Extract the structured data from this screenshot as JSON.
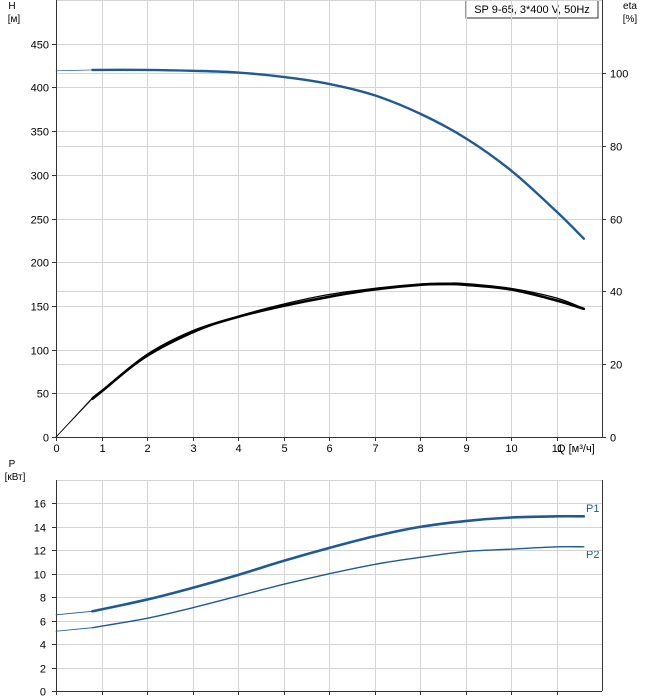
{
  "pump_label": "SP 9-65, 3*400 V, 50Hz",
  "colors": {
    "blue": "#1f5a96",
    "black": "#000000",
    "grid": "#d4d4d4"
  },
  "chart_data": [
    {
      "type": "line",
      "ylabel": "H",
      "ylabel_unit": "[м]",
      "y2label": "eta",
      "y2label_unit": "[%]",
      "xlabel": "Q [м³/ч]",
      "xlim": [
        0,
        12
      ],
      "ylim": [
        0,
        500
      ],
      "y2lim": [
        0,
        120
      ],
      "x_ticks": [
        0,
        1,
        2,
        3,
        4,
        5,
        6,
        7,
        8,
        9,
        10,
        11
      ],
      "y_ticks": [
        0,
        50,
        100,
        150,
        200,
        250,
        300,
        350,
        400,
        450
      ],
      "y2_ticks": [
        0,
        20,
        40,
        60,
        80,
        100
      ],
      "grid": true,
      "series": [
        {
          "axis": "y",
          "color": "#1f5a96",
          "x": [
            0,
            0.8,
            2,
            3,
            4,
            5,
            6,
            7,
            8,
            9,
            10,
            11,
            11.6
          ],
          "y": [
            419,
            420,
            420,
            419,
            417,
            412,
            404,
            391,
            370,
            342,
            305,
            258,
            227
          ]
        },
        {
          "axis": "y2",
          "color": "#000000",
          "x": [
            0,
            0.8,
            1,
            2,
            3,
            4,
            5,
            6,
            7,
            8,
            8.6,
            9,
            10,
            11,
            11.6
          ],
          "y": [
            0,
            10.5,
            12.5,
            22.5,
            29,
            33,
            36,
            38.5,
            40.5,
            41.8,
            42,
            41.8,
            40.5,
            37.5,
            35.2
          ]
        },
        {
          "axis": "y",
          "color": "#000000",
          "x": [
            0,
            0.8,
            1,
            2,
            3,
            4,
            5,
            6,
            7,
            8,
            8.6,
            9,
            10,
            11,
            11.6
          ],
          "y": [
            0,
            45,
            53,
            92,
            119,
            138,
            152,
            163,
            170,
            175,
            176,
            175.5,
            170,
            159,
            147
          ]
        }
      ]
    },
    {
      "type": "line",
      "ylabel": "P",
      "ylabel_unit": "[кВт]",
      "xlim": [
        0,
        12
      ],
      "ylim": [
        0,
        18
      ],
      "y_ticks": [
        0,
        2,
        4,
        6,
        8,
        10,
        12,
        14,
        16
      ],
      "grid": true,
      "series": [
        {
          "name": "P1",
          "color": "#1f5a96",
          "x": [
            0,
            0.8,
            2,
            3,
            4,
            5,
            6,
            7,
            8,
            9,
            10,
            11,
            11.6
          ],
          "y": [
            6.5,
            6.8,
            7.8,
            8.8,
            9.9,
            11.1,
            12.2,
            13.2,
            14.0,
            14.5,
            14.8,
            14.9,
            14.9
          ]
        },
        {
          "name": "P2",
          "color": "#1f5a96",
          "x": [
            0,
            0.8,
            2,
            3,
            4,
            5,
            6,
            7,
            8,
            9,
            10,
            11,
            11.6
          ],
          "y": [
            5.1,
            5.4,
            6.2,
            7.1,
            8.1,
            9.1,
            10.0,
            10.8,
            11.4,
            11.9,
            12.1,
            12.3,
            12.3
          ]
        }
      ]
    }
  ]
}
